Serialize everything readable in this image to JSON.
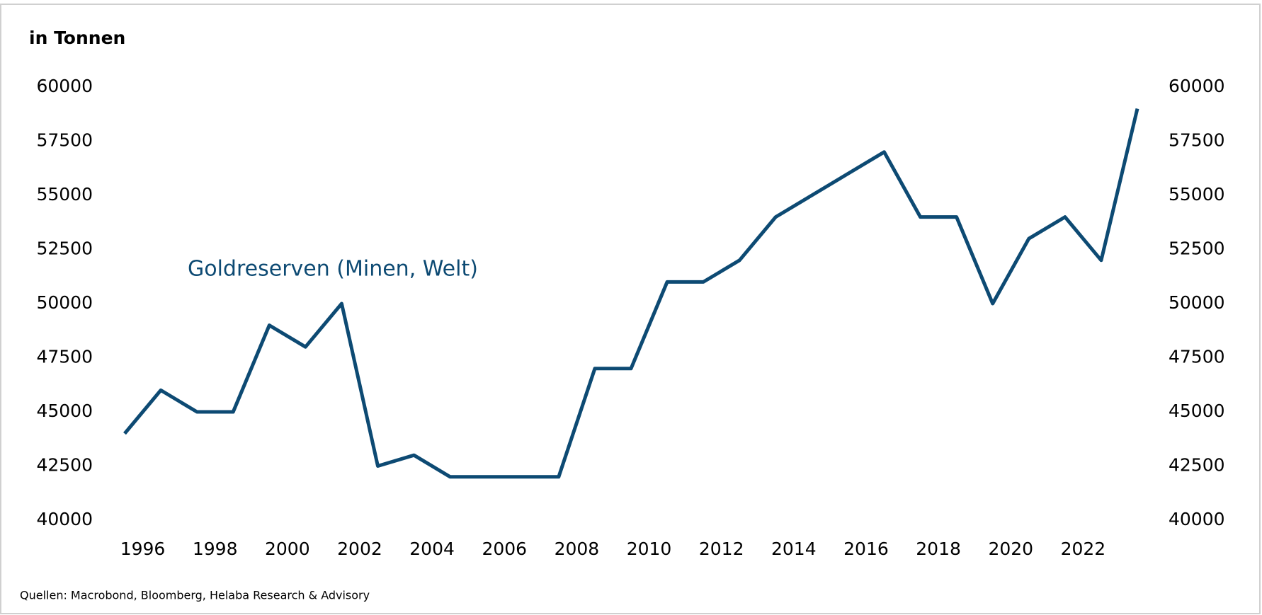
{
  "chart_data": {
    "type": "line",
    "y_label": "in Tonnen",
    "annotation": "Goldreserven (Minen, Welt)",
    "source": "Quellen: Macrobond,  Bloomberg, Helaba Research & Advisory",
    "x": [
      1995,
      1996,
      1997,
      1998,
      1999,
      2000,
      2001,
      2002,
      2003,
      2004,
      2005,
      2006,
      2007,
      2008,
      2009,
      2010,
      2011,
      2012,
      2013,
      2014,
      2015,
      2016,
      2017,
      2018,
      2019,
      2020,
      2021,
      2022,
      2023
    ],
    "series": [
      {
        "name": "Goldreserven (Minen, Welt)",
        "color": "#0d4a73",
        "values": [
          44000,
          46000,
          45000,
          45000,
          49000,
          48000,
          50000,
          42500,
          43000,
          42000,
          42000,
          42000,
          42000,
          47000,
          47000,
          51000,
          51000,
          52000,
          54000,
          55000,
          56000,
          57000,
          54000,
          54000,
          50000,
          53000,
          54000,
          52000,
          59000
        ]
      }
    ],
    "xlim": [
      1995,
      2023
    ],
    "xticks": [
      1996,
      1998,
      2000,
      2002,
      2004,
      2006,
      2008,
      2010,
      2012,
      2014,
      2016,
      2018,
      2020,
      2022
    ],
    "ylim": [
      40000,
      60000
    ],
    "yticks": [
      40000,
      42500,
      45000,
      47500,
      50000,
      52500,
      55000,
      57500,
      60000
    ],
    "y2lim": [
      40000,
      60000
    ],
    "y2ticks": [
      40000,
      42500,
      45000,
      47500,
      50000,
      52500,
      55000,
      57500,
      60000
    ],
    "grid": false
  }
}
